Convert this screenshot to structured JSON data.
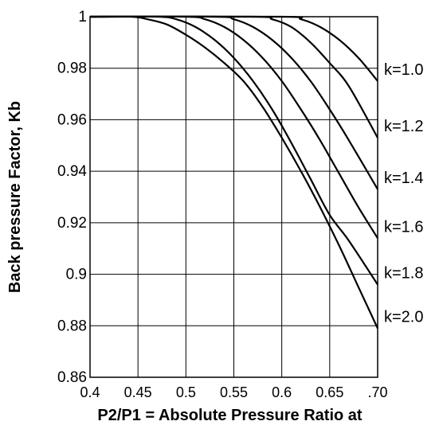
{
  "chart_data": {
    "type": "line",
    "title": "",
    "xlabel": "P2/P1 = Absolute Pressure Ratio at",
    "ylabel": "Back pressure Factor, Kb",
    "xlim": [
      0.4,
      0.7
    ],
    "ylim": [
      0.86,
      1.0
    ],
    "x_ticks": [
      {
        "value": 0.4,
        "label": "0.4"
      },
      {
        "value": 0.45,
        "label": "0.45"
      },
      {
        "value": 0.5,
        "label": "0.5"
      },
      {
        "value": 0.55,
        "label": "0.55"
      },
      {
        "value": 0.6,
        "label": "0.6"
      },
      {
        "value": 0.65,
        "label": "0.65"
      },
      {
        "value": 0.7,
        "label": ".70"
      }
    ],
    "y_ticks": [
      {
        "value": 1.0,
        "label": "1"
      },
      {
        "value": 0.98,
        "label": "0.98"
      },
      {
        "value": 0.96,
        "label": "0.96"
      },
      {
        "value": 0.94,
        "label": "0.94"
      },
      {
        "value": 0.92,
        "label": "0.92"
      },
      {
        "value": 0.9,
        "label": "0.9"
      },
      {
        "value": 0.88,
        "label": "0.88"
      },
      {
        "value": 0.86,
        "label": "0.86"
      }
    ],
    "grid": true,
    "series": [
      {
        "name": "k=1.0",
        "x": [
          0.4,
          0.6,
          0.62,
          0.64,
          0.66,
          0.68,
          0.7
        ],
        "y": [
          1.0,
          1.0,
          0.999,
          0.996,
          0.991,
          0.984,
          0.975
        ]
      },
      {
        "name": "k=1.2",
        "x": [
          0.4,
          0.57,
          0.59,
          0.61,
          0.63,
          0.65,
          0.67,
          0.7
        ],
        "y": [
          1.0,
          1.0,
          0.999,
          0.996,
          0.99,
          0.982,
          0.973,
          0.953
        ]
      },
      {
        "name": "k=1.4",
        "x": [
          0.4,
          0.53,
          0.55,
          0.57,
          0.59,
          0.61,
          0.63,
          0.65,
          0.67,
          0.7
        ],
        "y": [
          1.0,
          1.0,
          0.999,
          0.996,
          0.991,
          0.984,
          0.975,
          0.964,
          0.952,
          0.933
        ]
      },
      {
        "name": "k=1.6",
        "x": [
          0.4,
          0.5,
          0.52,
          0.54,
          0.56,
          0.58,
          0.6,
          0.62,
          0.64,
          0.66,
          0.68,
          0.7
        ],
        "y": [
          1.0,
          1.0,
          0.999,
          0.996,
          0.991,
          0.984,
          0.975,
          0.964,
          0.952,
          0.939,
          0.926,
          0.914
        ]
      },
      {
        "name": "k=1.8",
        "x": [
          0.4,
          0.47,
          0.49,
          0.51,
          0.53,
          0.55,
          0.57,
          0.59,
          0.61,
          0.63,
          0.65,
          0.67,
          0.7
        ],
        "y": [
          1.0,
          1.0,
          0.999,
          0.996,
          0.991,
          0.984,
          0.975,
          0.964,
          0.951,
          0.937,
          0.923,
          0.913,
          0.896
        ]
      },
      {
        "name": "k=2.0",
        "x": [
          0.4,
          0.443,
          0.46,
          0.48,
          0.5,
          0.52,
          0.54,
          0.56,
          0.58,
          0.6,
          0.62,
          0.64,
          0.66,
          0.68,
          0.7
        ],
        "y": [
          1.0,
          1.0,
          0.999,
          0.997,
          0.993,
          0.988,
          0.982,
          0.975,
          0.965,
          0.953,
          0.94,
          0.926,
          0.911,
          0.895,
          0.879
        ]
      }
    ]
  }
}
